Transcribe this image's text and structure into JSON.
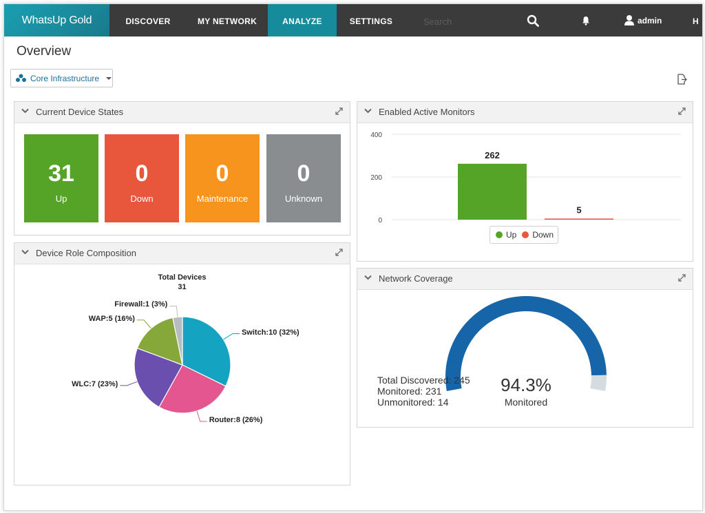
{
  "nav": {
    "logo": "WhatsUp Gold",
    "items": [
      "DISCOVER",
      "MY NETWORK",
      "ANALYZE",
      "SETTINGS"
    ],
    "active": "ANALYZE",
    "search_placeholder": "Search",
    "user": "admin",
    "trailing": "H"
  },
  "page": {
    "title": "Overview",
    "group": "Core Infrastructure"
  },
  "device_states": {
    "title": "Current Device States",
    "tiles": [
      {
        "count": "31",
        "label": "Up",
        "color": "#56a427"
      },
      {
        "count": "0",
        "label": "Down",
        "color": "#e8563c"
      },
      {
        "count": "0",
        "label": "Maintenance",
        "color": "#f7941d"
      },
      {
        "count": "0",
        "label": "Unknown",
        "color": "#8a8d90"
      }
    ]
  },
  "active_monitors": {
    "title": "Enabled Active Monitors",
    "chart_data": {
      "type": "bar",
      "categories": [
        "Up",
        "Down"
      ],
      "values": [
        262,
        5
      ],
      "ylim": [
        0,
        400
      ],
      "yticks": [
        0,
        200,
        400
      ],
      "colors": [
        "#56a427",
        "#e8563c"
      ],
      "legend": [
        "Up",
        "Down"
      ],
      "legend_position": "bottom",
      "grid": true
    }
  },
  "role_composition": {
    "title": "Device Role Composition",
    "total_label": "Total Devices",
    "total_value": "31",
    "chart_data": {
      "type": "pie",
      "labels": [
        "Switch:10 (32%)",
        "Router:8 (26%)",
        "WLC:7 (23%)",
        "WAP:5 (16%)",
        "Firewall:1 (3%)"
      ],
      "categories": [
        "Switch",
        "Router",
        "WLC",
        "WAP",
        "Firewall"
      ],
      "values": [
        10,
        8,
        7,
        5,
        1
      ],
      "colors": [
        "#14a3c0",
        "#e3568f",
        "#6a4fae",
        "#86a83a",
        "#b7bcbf"
      ]
    }
  },
  "coverage": {
    "title": "Network Coverage",
    "lines": [
      "Total Discovered: 245",
      "Monitored: 231",
      "Unmonitored: 14"
    ],
    "percent": "94.3%",
    "percent_label": "Monitored",
    "chart_data": {
      "type": "gauge",
      "value": 94.3,
      "max": 100,
      "colors": [
        "#1565a8",
        "#d5dcdf"
      ]
    }
  }
}
